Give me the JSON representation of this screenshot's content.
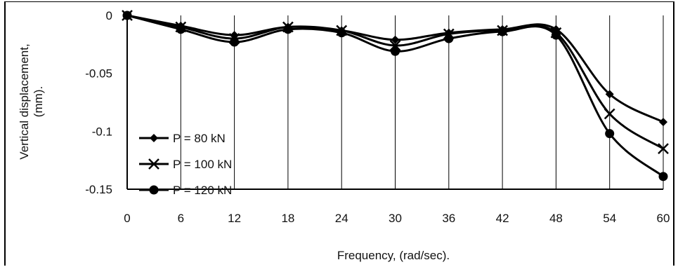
{
  "chart_data": {
    "type": "line",
    "title": "",
    "xlabel": "Frequency, (rad/sec).",
    "ylabel": "Vertical displacement, (mm).",
    "x": [
      0,
      6,
      12,
      18,
      24,
      30,
      36,
      42,
      48,
      54,
      60
    ],
    "x_ticks": [
      "0",
      "6",
      "12",
      "18",
      "24",
      "30",
      "36",
      "42",
      "48",
      "54",
      "60"
    ],
    "y_ticks": [
      "0",
      "-0.05",
      "-0.1",
      "-0.15"
    ],
    "xlim": [
      0,
      60
    ],
    "ylim": [
      -0.15,
      0
    ],
    "grid": "vertical",
    "legend": "bottom-left",
    "series": [
      {
        "name": "P = 80 kN",
        "marker": "diamond",
        "color": "#000000",
        "values": [
          0,
          -0.009,
          -0.017,
          -0.01,
          -0.013,
          -0.021,
          -0.015,
          -0.012,
          -0.012,
          -0.068,
          -0.092
        ]
      },
      {
        "name": "P = 100 kN",
        "marker": "x",
        "color": "#000000",
        "values": [
          0,
          -0.01,
          -0.02,
          -0.01,
          -0.013,
          -0.026,
          -0.016,
          -0.013,
          -0.015,
          -0.085,
          -0.115
        ]
      },
      {
        "name": "P = 120 kN",
        "marker": "circle",
        "color": "#000000",
        "values": [
          0,
          -0.012,
          -0.023,
          -0.012,
          -0.015,
          -0.031,
          -0.02,
          -0.014,
          -0.017,
          -0.102,
          -0.139
        ]
      }
    ]
  }
}
